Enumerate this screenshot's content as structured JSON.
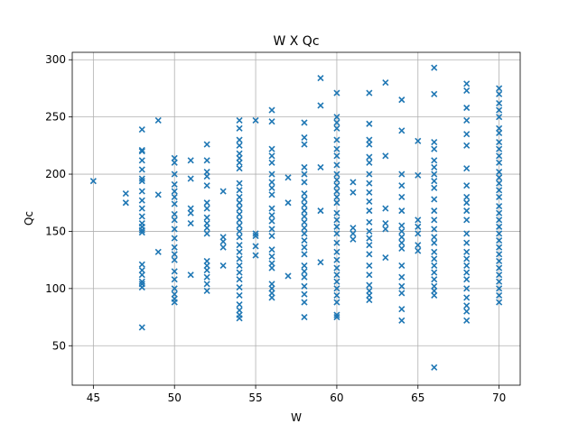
{
  "chart_data": {
    "type": "scatter",
    "title": "W X Qc",
    "xlabel": "W",
    "ylabel": "Qc",
    "xlim": [
      43.7,
      71.3
    ],
    "ylim": [
      15.5,
      306.5
    ],
    "xticks": [
      45,
      50,
      55,
      60,
      65,
      70
    ],
    "yticks": [
      50,
      100,
      150,
      200,
      250,
      300
    ],
    "grid": true,
    "marker": "x",
    "color": "#1f77b4",
    "series": [
      {
        "name": "Qc",
        "points": [
          [
            45,
            194
          ],
          [
            47,
            183
          ],
          [
            47,
            175
          ],
          [
            48,
            239
          ],
          [
            48,
            221
          ],
          [
            48,
            220
          ],
          [
            48,
            212
          ],
          [
            48,
            204
          ],
          [
            48,
            196
          ],
          [
            48,
            194
          ],
          [
            48,
            185
          ],
          [
            48,
            177
          ],
          [
            48,
            170
          ],
          [
            48,
            163
          ],
          [
            48,
            157
          ],
          [
            48,
            154
          ],
          [
            48,
            151
          ],
          [
            48,
            149
          ],
          [
            48,
            121
          ],
          [
            48,
            116
          ],
          [
            48,
            112
          ],
          [
            48,
            106
          ],
          [
            48,
            104
          ],
          [
            48,
            101
          ],
          [
            48,
            66
          ],
          [
            49,
            247
          ],
          [
            49,
            182
          ],
          [
            49,
            132
          ],
          [
            50,
            214
          ],
          [
            50,
            210
          ],
          [
            50,
            200
          ],
          [
            50,
            191
          ],
          [
            50,
            185
          ],
          [
            50,
            180
          ],
          [
            50,
            174
          ],
          [
            50,
            165
          ],
          [
            50,
            160
          ],
          [
            50,
            152
          ],
          [
            50,
            144
          ],
          [
            50,
            136
          ],
          [
            50,
            130
          ],
          [
            50,
            125
          ],
          [
            50,
            115
          ],
          [
            50,
            108
          ],
          [
            50,
            100
          ],
          [
            50,
            95
          ],
          [
            50,
            91
          ],
          [
            50,
            88
          ],
          [
            51,
            212
          ],
          [
            51,
            196
          ],
          [
            51,
            170
          ],
          [
            51,
            166
          ],
          [
            51,
            157
          ],
          [
            51,
            112
          ],
          [
            52,
            226
          ],
          [
            52,
            212
          ],
          [
            52,
            202
          ],
          [
            52,
            198
          ],
          [
            52,
            190
          ],
          [
            52,
            175
          ],
          [
            52,
            170
          ],
          [
            52,
            162
          ],
          [
            52,
            157
          ],
          [
            52,
            153
          ],
          [
            52,
            148
          ],
          [
            52,
            124
          ],
          [
            52,
            120
          ],
          [
            52,
            116
          ],
          [
            52,
            110
          ],
          [
            52,
            104
          ],
          [
            52,
            98
          ],
          [
            53,
            185
          ],
          [
            53,
            145
          ],
          [
            53,
            141
          ],
          [
            53,
            136
          ],
          [
            53,
            120
          ],
          [
            54,
            247
          ],
          [
            54,
            240
          ],
          [
            54,
            230
          ],
          [
            54,
            225
          ],
          [
            54,
            218
          ],
          [
            54,
            214
          ],
          [
            54,
            210
          ],
          [
            54,
            205
          ],
          [
            54,
            192
          ],
          [
            54,
            186
          ],
          [
            54,
            180
          ],
          [
            54,
            175
          ],
          [
            54,
            170
          ],
          [
            54,
            165
          ],
          [
            54,
            160
          ],
          [
            54,
            155
          ],
          [
            54,
            150
          ],
          [
            54,
            145
          ],
          [
            54,
            138
          ],
          [
            54,
            132
          ],
          [
            54,
            126
          ],
          [
            54,
            120
          ],
          [
            54,
            114
          ],
          [
            54,
            108
          ],
          [
            54,
            101
          ],
          [
            54,
            94
          ],
          [
            54,
            86
          ],
          [
            54,
            81
          ],
          [
            54,
            77
          ],
          [
            54,
            74
          ],
          [
            55,
            247
          ],
          [
            55,
            148
          ],
          [
            55,
            146
          ],
          [
            55,
            137
          ],
          [
            55,
            129
          ],
          [
            56,
            256
          ],
          [
            56,
            246
          ],
          [
            56,
            222
          ],
          [
            56,
            216
          ],
          [
            56,
            210
          ],
          [
            56,
            200
          ],
          [
            56,
            193
          ],
          [
            56,
            188
          ],
          [
            56,
            182
          ],
          [
            56,
            170
          ],
          [
            56,
            164
          ],
          [
            56,
            159
          ],
          [
            56,
            152
          ],
          [
            56,
            146
          ],
          [
            56,
            134
          ],
          [
            56,
            128
          ],
          [
            56,
            122
          ],
          [
            56,
            118
          ],
          [
            56,
            104
          ],
          [
            56,
            100
          ],
          [
            56,
            96
          ],
          [
            56,
            92
          ],
          [
            57,
            197
          ],
          [
            57,
            175
          ],
          [
            57,
            111
          ],
          [
            58,
            245
          ],
          [
            58,
            232
          ],
          [
            58,
            226
          ],
          [
            58,
            206
          ],
          [
            58,
            200
          ],
          [
            58,
            193
          ],
          [
            58,
            183
          ],
          [
            58,
            178
          ],
          [
            58,
            173
          ],
          [
            58,
            168
          ],
          [
            58,
            163
          ],
          [
            58,
            158
          ],
          [
            58,
            153
          ],
          [
            58,
            148
          ],
          [
            58,
            142
          ],
          [
            58,
            136
          ],
          [
            58,
            130
          ],
          [
            58,
            120
          ],
          [
            58,
            115
          ],
          [
            58,
            110
          ],
          [
            58,
            102
          ],
          [
            58,
            95
          ],
          [
            58,
            88
          ],
          [
            58,
            75
          ],
          [
            59,
            284
          ],
          [
            59,
            260
          ],
          [
            59,
            206
          ],
          [
            59,
            168
          ],
          [
            59,
            123
          ],
          [
            60,
            271
          ],
          [
            60,
            250
          ],
          [
            60,
            245
          ],
          [
            60,
            240
          ],
          [
            60,
            230
          ],
          [
            60,
            222
          ],
          [
            60,
            216
          ],
          [
            60,
            208
          ],
          [
            60,
            200
          ],
          [
            60,
            195
          ],
          [
            60,
            190
          ],
          [
            60,
            185
          ],
          [
            60,
            180
          ],
          [
            60,
            175
          ],
          [
            60,
            166
          ],
          [
            60,
            160
          ],
          [
            60,
            154
          ],
          [
            60,
            148
          ],
          [
            60,
            140
          ],
          [
            60,
            132
          ],
          [
            60,
            125
          ],
          [
            60,
            118
          ],
          [
            60,
            112
          ],
          [
            60,
            106
          ],
          [
            60,
            100
          ],
          [
            60,
            94
          ],
          [
            60,
            88
          ],
          [
            60,
            77
          ],
          [
            60,
            75
          ],
          [
            61,
            193
          ],
          [
            61,
            184
          ],
          [
            61,
            153
          ],
          [
            61,
            148
          ],
          [
            61,
            143
          ],
          [
            62,
            271
          ],
          [
            62,
            244
          ],
          [
            62,
            230
          ],
          [
            62,
            226
          ],
          [
            62,
            215
          ],
          [
            62,
            210
          ],
          [
            62,
            200
          ],
          [
            62,
            192
          ],
          [
            62,
            184
          ],
          [
            62,
            176
          ],
          [
            62,
            168
          ],
          [
            62,
            158
          ],
          [
            62,
            150
          ],
          [
            62,
            144
          ],
          [
            62,
            138
          ],
          [
            62,
            130
          ],
          [
            62,
            120
          ],
          [
            62,
            112
          ],
          [
            62,
            103
          ],
          [
            62,
            98
          ],
          [
            62,
            94
          ],
          [
            62,
            90
          ],
          [
            63,
            280
          ],
          [
            63,
            216
          ],
          [
            63,
            170
          ],
          [
            63,
            157
          ],
          [
            63,
            152
          ],
          [
            63,
            127
          ],
          [
            64,
            265
          ],
          [
            64,
            238
          ],
          [
            64,
            200
          ],
          [
            64,
            190
          ],
          [
            64,
            180
          ],
          [
            64,
            168
          ],
          [
            64,
            155
          ],
          [
            64,
            150
          ],
          [
            64,
            145
          ],
          [
            64,
            140
          ],
          [
            64,
            135
          ],
          [
            64,
            120
          ],
          [
            64,
            110
          ],
          [
            64,
            102
          ],
          [
            64,
            96
          ],
          [
            64,
            82
          ],
          [
            64,
            72
          ],
          [
            65,
            229
          ],
          [
            65,
            199
          ],
          [
            65,
            160
          ],
          [
            65,
            154
          ],
          [
            65,
            148
          ],
          [
            65,
            138
          ],
          [
            65,
            133
          ],
          [
            66,
            293
          ],
          [
            66,
            270
          ],
          [
            66,
            228
          ],
          [
            66,
            222
          ],
          [
            66,
            212
          ],
          [
            66,
            206
          ],
          [
            66,
            200
          ],
          [
            66,
            194
          ],
          [
            66,
            188
          ],
          [
            66,
            178
          ],
          [
            66,
            168
          ],
          [
            66,
            160
          ],
          [
            66,
            152
          ],
          [
            66,
            145
          ],
          [
            66,
            140
          ],
          [
            66,
            132
          ],
          [
            66,
            126
          ],
          [
            66,
            120
          ],
          [
            66,
            114
          ],
          [
            66,
            108
          ],
          [
            66,
            102
          ],
          [
            66,
            98
          ],
          [
            66,
            94
          ],
          [
            66,
            31
          ],
          [
            68,
            279
          ],
          [
            68,
            273
          ],
          [
            68,
            258
          ],
          [
            68,
            247
          ],
          [
            68,
            235
          ],
          [
            68,
            225
          ],
          [
            68,
            205
          ],
          [
            68,
            190
          ],
          [
            68,
            180
          ],
          [
            68,
            175
          ],
          [
            68,
            168
          ],
          [
            68,
            160
          ],
          [
            68,
            148
          ],
          [
            68,
            140
          ],
          [
            68,
            132
          ],
          [
            68,
            126
          ],
          [
            68,
            120
          ],
          [
            68,
            114
          ],
          [
            68,
            108
          ],
          [
            68,
            100
          ],
          [
            68,
            92
          ],
          [
            68,
            85
          ],
          [
            68,
            80
          ],
          [
            68,
            72
          ],
          [
            70,
            275
          ],
          [
            70,
            270
          ],
          [
            70,
            262
          ],
          [
            70,
            256
          ],
          [
            70,
            250
          ],
          [
            70,
            240
          ],
          [
            70,
            236
          ],
          [
            70,
            228
          ],
          [
            70,
            222
          ],
          [
            70,
            216
          ],
          [
            70,
            210
          ],
          [
            70,
            202
          ],
          [
            70,
            197
          ],
          [
            70,
            192
          ],
          [
            70,
            186
          ],
          [
            70,
            180
          ],
          [
            70,
            172
          ],
          [
            70,
            166
          ],
          [
            70,
            160
          ],
          [
            70,
            154
          ],
          [
            70,
            148
          ],
          [
            70,
            142
          ],
          [
            70,
            136
          ],
          [
            70,
            130
          ],
          [
            70,
            124
          ],
          [
            70,
            118
          ],
          [
            70,
            112
          ],
          [
            70,
            106
          ],
          [
            70,
            100
          ],
          [
            70,
            94
          ],
          [
            70,
            88
          ]
        ]
      }
    ]
  }
}
